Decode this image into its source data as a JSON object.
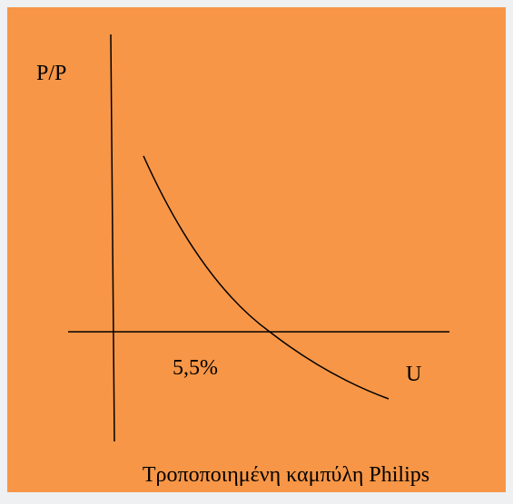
{
  "y_axis_label": "P/P",
  "x_axis_label": "U",
  "point_label": "5,5%",
  "caption": "Τροποποιημένη καμπύλη Philips"
}
